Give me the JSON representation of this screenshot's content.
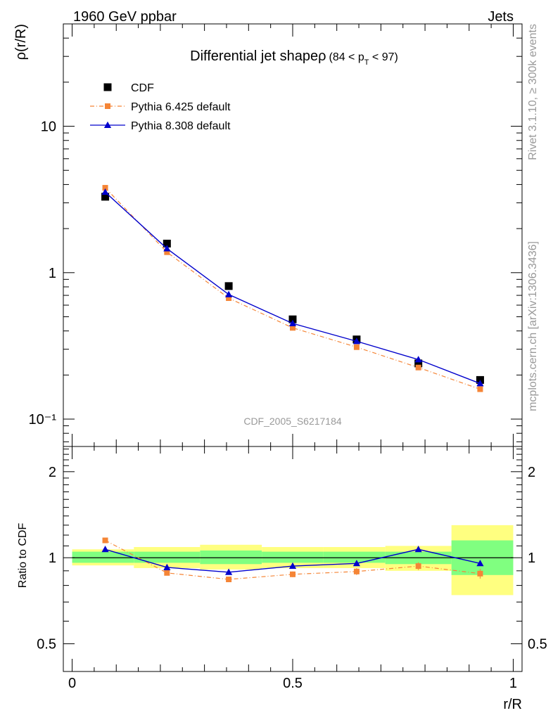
{
  "header": {
    "left": "1960 GeV ppbar",
    "right": "Jets"
  },
  "side_text": {
    "rivet": "Rivet 3.1.10, ≥ 300k events",
    "mcplots": "mcplots.cern.ch [arXiv:1306.3436]"
  },
  "chart_data": [
    {
      "type": "line",
      "panel": "main",
      "title": "Differential jet shapeρ",
      "title_suffix": "(84 < p_T < 97)",
      "ylabel": "ρ(r/R)",
      "xlabel": "",
      "yscale": "log",
      "xlim": [
        -0.02,
        1.02
      ],
      "ylim": [
        0.065,
        50
      ],
      "y_tick_labels": [
        "10⁻¹",
        "1",
        "10"
      ],
      "annotation": "CDF_2005_S6217184",
      "legend_position": "top-left",
      "x": [
        0.075,
        0.215,
        0.355,
        0.5,
        0.645,
        0.785,
        0.925
      ],
      "series": [
        {
          "name": "CDF",
          "marker": "square",
          "color": "#000000",
          "values": [
            3.3,
            1.58,
            0.81,
            0.48,
            0.35,
            0.24,
            0.185
          ]
        },
        {
          "name": "Pythia 6.425 default",
          "marker": "square",
          "line": "dashdot",
          "color": "#f58536",
          "values": [
            3.8,
            1.38,
            0.67,
            0.42,
            0.31,
            0.225,
            0.16
          ]
        },
        {
          "name": "Pythia 8.308 default",
          "marker": "triangle",
          "line": "solid",
          "color": "#0000cc",
          "values": [
            3.55,
            1.46,
            0.71,
            0.45,
            0.34,
            0.255,
            0.175
          ]
        }
      ]
    },
    {
      "type": "line",
      "panel": "ratio",
      "ylabel": "Ratio to CDF",
      "xlabel": "r/R",
      "ylim": [
        0.4,
        2.45
      ],
      "y_ticks": [
        0.5,
        1,
        2
      ],
      "y_tick_labels": [
        "0.5",
        "1",
        "2"
      ],
      "x_ticks": [
        0,
        0.5,
        1
      ],
      "x_tick_labels": [
        "0",
        "0.5",
        "1"
      ],
      "x": [
        0.075,
        0.215,
        0.355,
        0.5,
        0.645,
        0.785,
        0.925
      ],
      "bins": [
        [
          0,
          0.14
        ],
        [
          0.14,
          0.29
        ],
        [
          0.29,
          0.43
        ],
        [
          0.43,
          0.57
        ],
        [
          0.57,
          0.71
        ],
        [
          0.71,
          0.86
        ],
        [
          0.86,
          1.0
        ]
      ],
      "band_colors": {
        "inner": "#80ff80",
        "outer": "#ffff80"
      },
      "band_inner": [
        [
          0.96,
          1.05
        ],
        [
          0.96,
          1.05
        ],
        [
          0.95,
          1.06
        ],
        [
          0.96,
          1.05
        ],
        [
          0.96,
          1.05
        ],
        [
          0.95,
          1.05
        ],
        [
          0.87,
          1.15
        ]
      ],
      "band_outer": [
        [
          0.94,
          1.07
        ],
        [
          0.92,
          1.09
        ],
        [
          0.91,
          1.11
        ],
        [
          0.92,
          1.09
        ],
        [
          0.92,
          1.09
        ],
        [
          0.9,
          1.1
        ],
        [
          0.74,
          1.3
        ]
      ],
      "series": [
        {
          "name": "Pythia 6.425 default",
          "marker": "square",
          "line": "dashdot",
          "color": "#f58536",
          "values": [
            1.15,
            0.885,
            0.84,
            0.875,
            0.895,
            0.935,
            0.88
          ],
          "errors": [
            0,
            0,
            0.015,
            0.02,
            0.025,
            0.03,
            0.035
          ]
        },
        {
          "name": "Pythia 8.308 default",
          "marker": "triangle",
          "line": "solid",
          "color": "#0000cc",
          "values": [
            1.07,
            0.925,
            0.89,
            0.935,
            0.955,
            1.07,
            0.955
          ],
          "errors": [
            0,
            0,
            0,
            0,
            0,
            0,
            0
          ]
        }
      ]
    }
  ]
}
